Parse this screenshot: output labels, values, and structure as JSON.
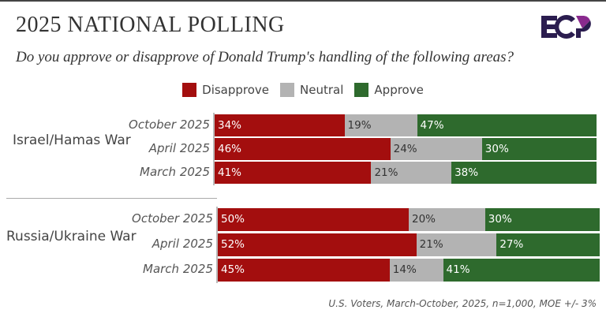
{
  "header": {
    "title": "2025 NATIONAL POLLING",
    "subtitle": "Do you approve or disapprove of Donald Trump's handling of the following areas?",
    "logo_text": "ECP"
  },
  "footer": "U.S. Voters, March-October, 2025, n=1,000, MOE +/- 3%",
  "chart_data": {
    "type": "bar",
    "stacked": true,
    "orientation": "horizontal",
    "legend": {
      "placement": "top",
      "entries": [
        "Disapprove",
        "Neutral",
        "Approve"
      ]
    },
    "colors": {
      "Disapprove": "#a30e0e",
      "Neutral": "#b3b3b3",
      "Approve": "#2e6a2d"
    },
    "groups": [
      {
        "label": "Israel/Hamas War",
        "rows": [
          {
            "period": "October 2025",
            "values": [
              34,
              19,
              47
            ],
            "labels": [
              "34%",
              "19%",
              "47%"
            ]
          },
          {
            "period": "April 2025",
            "values": [
              46,
              24,
              30
            ],
            "labels": [
              "46%",
              "24%",
              "30%"
            ]
          },
          {
            "period": "March 2025",
            "values": [
              41,
              21,
              38
            ],
            "labels": [
              "41%",
              "21%",
              "38%"
            ]
          }
        ]
      },
      {
        "label": "Russia/Ukraine War",
        "rows": [
          {
            "period": "October 2025",
            "values": [
              50,
              20,
              30
            ],
            "labels": [
              "50%",
              "20%",
              "30%"
            ]
          },
          {
            "period": "April 2025",
            "values": [
              52,
              21,
              27
            ],
            "labels": [
              "52%",
              "21%",
              "27%"
            ]
          },
          {
            "period": "March 2025",
            "values": [
              45,
              14,
              41
            ],
            "labels": [
              "45%",
              "14%",
              "41%"
            ]
          }
        ]
      }
    ]
  }
}
